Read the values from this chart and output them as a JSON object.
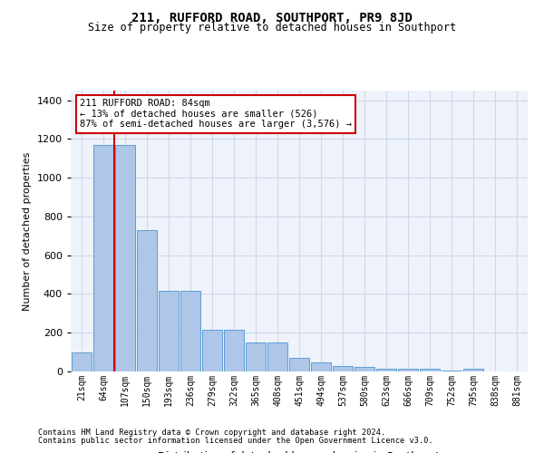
{
  "title": "211, RUFFORD ROAD, SOUTHPORT, PR9 8JD",
  "subtitle": "Size of property relative to detached houses in Southport",
  "xlabel": "Distribution of detached houses by size in Southport",
  "ylabel": "Number of detached properties",
  "bar_labels": [
    "21sqm",
    "64sqm",
    "107sqm",
    "150sqm",
    "193sqm",
    "236sqm",
    "279sqm",
    "322sqm",
    "365sqm",
    "408sqm",
    "451sqm",
    "494sqm",
    "537sqm",
    "580sqm",
    "623sqm",
    "666sqm",
    "709sqm",
    "752sqm",
    "795sqm",
    "838sqm",
    "881sqm"
  ],
  "bar_values": [
    100,
    1170,
    1170,
    730,
    415,
    415,
    215,
    215,
    150,
    150,
    70,
    45,
    30,
    25,
    15,
    15,
    13,
    5,
    12,
    0,
    0
  ],
  "bar_color": "#aec6e8",
  "bar_edge_color": "#5a9fd4",
  "grid_color": "#d0d8e8",
  "bg_color": "#eef2fa",
  "red_line_x": 1.5,
  "annotation_text": "211 RUFFORD ROAD: 84sqm\n← 13% of detached houses are smaller (526)\n87% of semi-detached houses are larger (3,576) →",
  "annotation_box_color": "#ffffff",
  "annotation_border_color": "#cc0000",
  "ylim": [
    0,
    1450
  ],
  "yticks": [
    0,
    200,
    400,
    600,
    800,
    1000,
    1200,
    1400
  ],
  "footer1": "Contains HM Land Registry data © Crown copyright and database right 2024.",
  "footer2": "Contains public sector information licensed under the Open Government Licence v3.0."
}
